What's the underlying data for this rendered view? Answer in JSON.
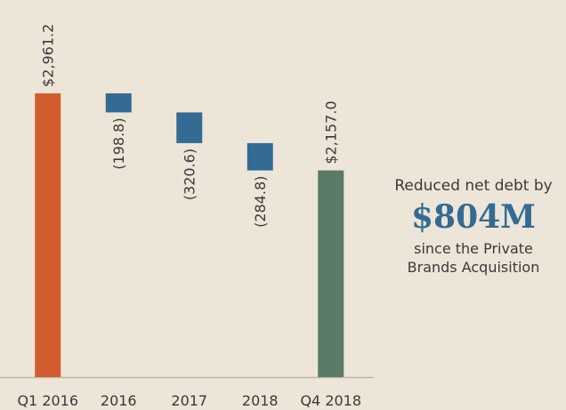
{
  "chart_data": {
    "type": "waterfall",
    "categories": [
      "Q1 2016",
      "2016",
      "2017",
      "2018",
      "Q4 2018"
    ],
    "values": [
      2961.2,
      -198.8,
      -320.6,
      -284.8,
      2157.0
    ],
    "value_labels": [
      "$2,961.2",
      "(198.8)",
      "(320.6)",
      "(284.8)",
      "$2,157.0"
    ],
    "totals": [
      true,
      false,
      false,
      false,
      true
    ],
    "colors": [
      "#d15d2f",
      "#336b94",
      "#336b94",
      "#336b94",
      "#5a7b68"
    ],
    "ylim": [
      0,
      3000
    ],
    "annotation": {
      "lines": [
        "Reduced net debt by",
        "$804M",
        "since the Private",
        "Brands Acquisition"
      ]
    }
  }
}
